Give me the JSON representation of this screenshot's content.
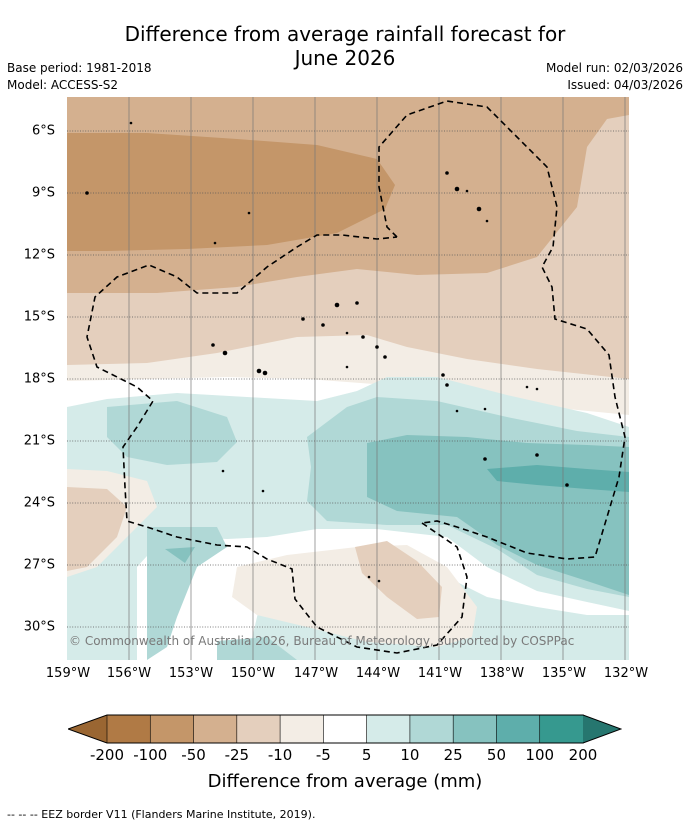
{
  "header": {
    "title_line1": "Difference from average rainfall forecast for",
    "title_line2": "June 2026",
    "base_period": "Base period: 1981-2018",
    "model": "Model: ACCESS-S2",
    "model_run": "Model run: 02/03/2026",
    "issued": "Issued: 04/03/2026"
  },
  "map": {
    "lat_labels": [
      "6°S",
      "9°S",
      "12°S",
      "15°S",
      "18°S",
      "21°S",
      "24°S",
      "27°S",
      "30°S"
    ],
    "lon_labels": [
      "159°W",
      "156°W",
      "153°W",
      "150°W",
      "147°W",
      "144°W",
      "141°W",
      "138°W",
      "135°W",
      "132°W"
    ],
    "copyright": "© Commonwealth of Australia 2026, Bureau of Meteorology, supported by COSPPac"
  },
  "colorbar": {
    "title": "Difference from average (mm)",
    "ticks": [
      "-200",
      "-100",
      "-50",
      "-25",
      "-10",
      "-5",
      "5",
      "10",
      "25",
      "50",
      "100",
      "200"
    ],
    "colors": [
      "#9a6632",
      "#b07a45",
      "#c49669",
      "#d4b08f",
      "#e4cfbd",
      "#f3ede5",
      "#ffffff",
      "#d5ebe9",
      "#b0d8d6",
      "#86c2bf",
      "#5eaeab",
      "#36998f",
      "#26766f"
    ]
  },
  "legend": {
    "eez_label": "-- -- -- EEZ border V11 (Flanders Marine Institute, 2019)."
  }
}
